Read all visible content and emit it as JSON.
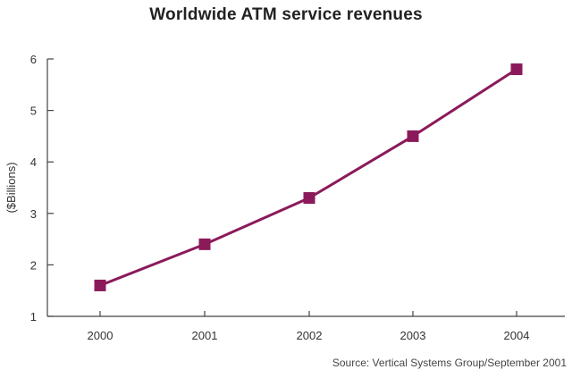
{
  "chart_data": {
    "type": "line",
    "title": "Worldwide ATM service revenues",
    "xlabel": "",
    "ylabel": "($Billions)",
    "categories": [
      "2000",
      "2001",
      "2002",
      "2003",
      "2004"
    ],
    "series": [
      {
        "values": [
          1.6,
          2.4,
          3.3,
          4.5,
          5.8
        ]
      }
    ],
    "ylim": [
      1,
      6
    ],
    "yticks": [
      1,
      2,
      3,
      4,
      5,
      6
    ],
    "grid": false,
    "marker": "square",
    "color": "#8b1a5a",
    "source": "Source: Vertical Systems Group/September 2001"
  }
}
